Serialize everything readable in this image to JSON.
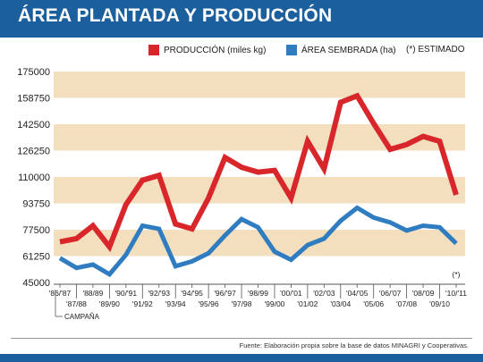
{
  "header": {
    "title": "ÁREA PLANTADA Y PRODUCCIÓN"
  },
  "legend": {
    "production_label": "PRODUCCIÓN (miles kg)",
    "area_label": "ÁREA SEMBRADA (ha)",
    "estimate_label": "(*) ESTIMADO"
  },
  "colors": {
    "production": "#d9262b",
    "area": "#2f7cc1",
    "band": "#f3dfbd",
    "header": "#1b5f9c"
  },
  "source": "Fuente: Elaboración propia sobre la base de datos MINAGRI y Cooperativas.",
  "chart_data": {
    "type": "line",
    "xlabel": "CAMPAÑA",
    "estimate_mark": "(*)",
    "ylim": [
      45000,
      175000
    ],
    "yticks": [
      "175000",
      "158750",
      "142500",
      "126250",
      "110000",
      "93750",
      "77500",
      "61250",
      "45000"
    ],
    "categories": [
      "'86/'87",
      "'87/88",
      "'88/89",
      "'89/90",
      "'90/'91",
      "'91/92",
      "'92/'93",
      "'93/94",
      "'94/'95",
      "'95/96",
      "'96/'97",
      "'97/98",
      "'98/99",
      "'99/00",
      "'00/'01",
      "'01/02",
      "'02/'03",
      "'03/04",
      "'04/'05",
      "'05/06",
      "'06/'07",
      "'07/08",
      "'08/'09",
      "'09/10",
      "'10/'11"
    ],
    "series": [
      {
        "name": "PRODUCCIÓN (miles kg)",
        "values": [
          70000,
          72000,
          80000,
          67000,
          93000,
          108000,
          111000,
          81000,
          78000,
          97000,
          122000,
          116000,
          113000,
          114000,
          97000,
          132000,
          115000,
          156000,
          160000,
          143000,
          127000,
          130000,
          135000,
          132000,
          99000
        ]
      },
      {
        "name": "ÁREA SEMBRADA (ha)",
        "values": [
          60000,
          54000,
          56000,
          50000,
          62000,
          80000,
          78000,
          55000,
          58000,
          63000,
          74000,
          84000,
          79000,
          64000,
          59000,
          68000,
          72000,
          83000,
          91000,
          85000,
          82000,
          77000,
          80000,
          79000,
          69000
        ]
      }
    ]
  }
}
